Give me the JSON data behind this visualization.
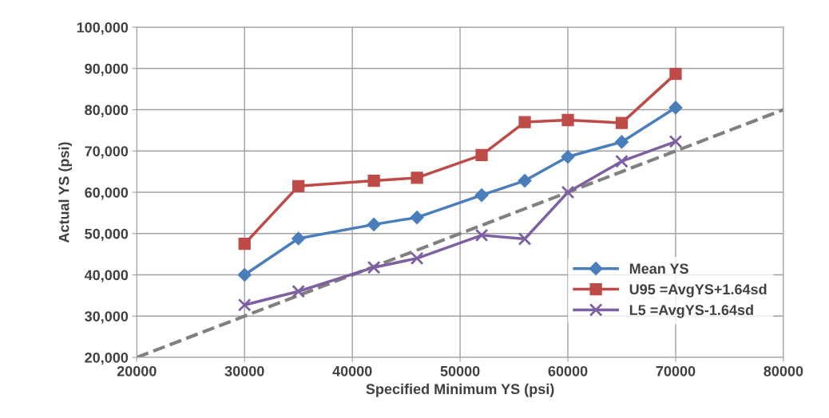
{
  "chart_data": {
    "type": "line",
    "xlabel": "Specified Minimum YS (psi)",
    "ylabel": "Actual YS (psi)",
    "xlim": [
      20000,
      80000
    ],
    "xticks": [
      20000,
      30000,
      40000,
      50000,
      60000,
      70000,
      80000
    ],
    "ylim": [
      20000,
      100000
    ],
    "yticks": [
      {
        "value": 20000,
        "label": "20,000"
      },
      {
        "value": 30000,
        "label": "30,000"
      },
      {
        "value": 40000,
        "label": "40,000"
      },
      {
        "value": 50000,
        "label": "50,000"
      },
      {
        "value": 60000,
        "label": "60,000"
      },
      {
        "value": 70000,
        "label": "70,000"
      },
      {
        "value": 80000,
        "label": "80,000"
      },
      {
        "value": 90000,
        "label": "90,000"
      },
      {
        "value": 100000,
        "label": "100,000"
      }
    ],
    "grid": true,
    "legend": "bottom right",
    "series": [
      {
        "name": "Mean YS",
        "color": "#4a7ebb",
        "marker": "diamond",
        "line_style": "solid",
        "x": [
          30000,
          35000,
          42000,
          46000,
          52000,
          56000,
          60000,
          65000,
          70000
        ],
        "values": [
          40000,
          48800,
          52200,
          53900,
          59300,
          62800,
          68600,
          72200,
          80500
        ]
      },
      {
        "name": "U95 =AvgYS+1.64sd",
        "color": "#be4b48",
        "marker": "square",
        "line_style": "solid",
        "x": [
          30000,
          35000,
          42000,
          46000,
          52000,
          56000,
          60000,
          65000,
          70000
        ],
        "values": [
          47500,
          61500,
          62800,
          63500,
          69000,
          77000,
          77500,
          76800,
          88700
        ]
      },
      {
        "name": "L5 =AvgYS-1.64sd",
        "color": "#7d60a0",
        "marker": "cross",
        "line_style": "solid",
        "x": [
          30000,
          35000,
          42000,
          46000,
          52000,
          56000,
          60000,
          65000,
          70000
        ],
        "values": [
          32700,
          36000,
          41800,
          44000,
          49600,
          48700,
          60000,
          67500,
          72300
        ]
      },
      {
        "color": "#808080",
        "marker": "none",
        "line_style": "dashed",
        "x": [
          20000,
          80000
        ],
        "values": [
          20000,
          80000
        ]
      }
    ]
  }
}
